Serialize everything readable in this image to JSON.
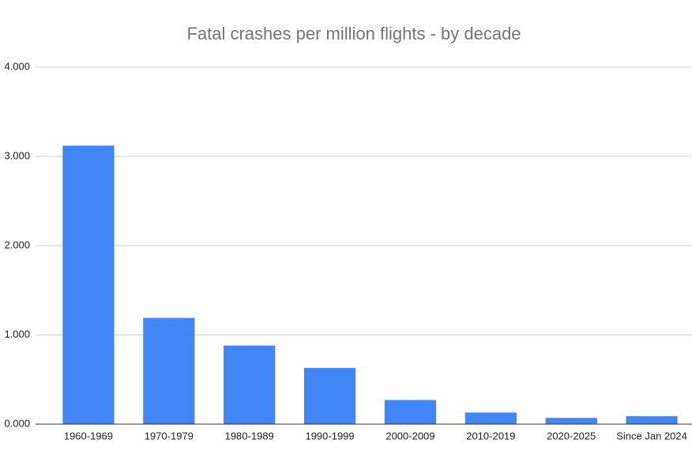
{
  "chart_data": {
    "type": "bar",
    "title": "Fatal crashes per million flights - by decade",
    "categories": [
      "1960-1969",
      "1970-1979",
      "1980-1989",
      "1990-1999",
      "2000-2009",
      "2010-2019",
      "2020-2025",
      "Since Jan 2024"
    ],
    "values": [
      3.12,
      1.19,
      0.88,
      0.63,
      0.27,
      0.13,
      0.07,
      0.09
    ],
    "color": "#4285f4",
    "ylim": [
      0,
      4
    ],
    "yticks": [
      {
        "value": 0,
        "label": "0.000"
      },
      {
        "value": 1,
        "label": "1.000"
      },
      {
        "value": 2,
        "label": "2.000"
      },
      {
        "value": 3,
        "label": "3.000"
      },
      {
        "value": 4,
        "label": "4.000"
      }
    ],
    "grid": true
  }
}
